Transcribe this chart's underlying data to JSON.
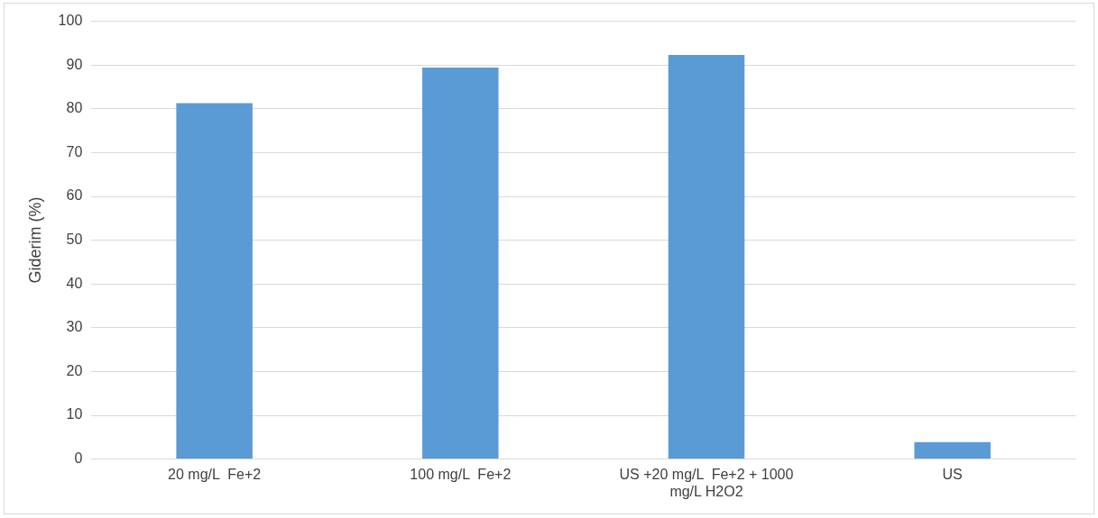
{
  "chart_data": {
    "type": "bar",
    "ylabel": "Giderim (%)",
    "categories": [
      "20 mg/L  Fe+2",
      "100 mg/L  Fe+2",
      "US +20 mg/L  Fe+2 + 1000 mg/L H2O2",
      "US"
    ],
    "values": [
      81.3,
      89.4,
      92.3,
      3.9
    ],
    "color": "#5b9bd5",
    "ylim": [
      0,
      100
    ],
    "yticks": [
      0,
      10,
      20,
      30,
      40,
      50,
      60,
      70,
      80,
      90,
      100
    ],
    "grid": "y",
    "legend": false
  }
}
